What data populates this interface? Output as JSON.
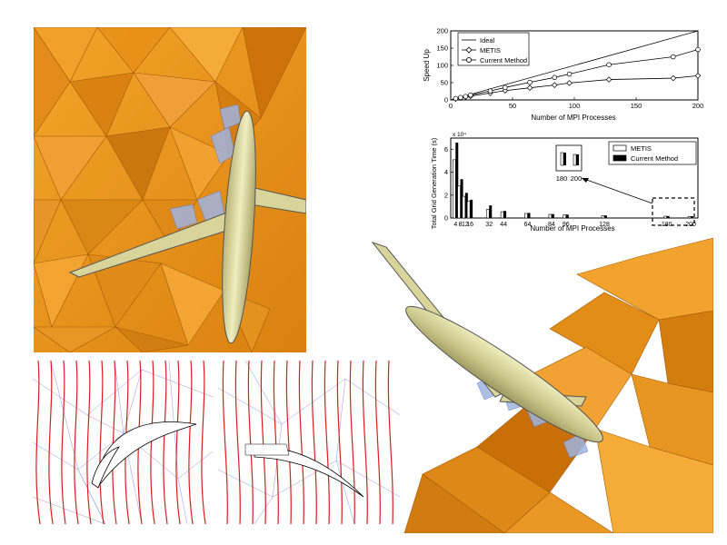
{
  "chart_data": [
    {
      "type": "line",
      "xlabel": "Number of MPI Processes",
      "ylabel": "Speed Up",
      "xlim": [
        0,
        200
      ],
      "ylim": [
        0,
        200
      ],
      "xticks": [
        0,
        50,
        100,
        150,
        200
      ],
      "yticks": [
        0,
        50,
        100,
        150,
        200
      ],
      "legend_position": "top-left",
      "series": [
        {
          "name": "Ideal",
          "marker": "none",
          "x": [
            0,
            200
          ],
          "y": [
            0,
            200
          ]
        },
        {
          "name": "METIS",
          "marker": "diamond",
          "x": [
            4,
            8,
            12,
            16,
            32,
            44,
            64,
            84,
            96,
            128,
            180,
            200
          ],
          "y": [
            3,
            6,
            9,
            11,
            20,
            27,
            35,
            43,
            49,
            59,
            63,
            70
          ]
        },
        {
          "name": "Current Method",
          "marker": "circle",
          "x": [
            4,
            8,
            12,
            16,
            32,
            44,
            64,
            84,
            96,
            128,
            180,
            200
          ],
          "y": [
            4,
            7,
            10,
            14,
            26,
            36,
            51,
            65,
            75,
            102,
            125,
            146
          ]
        }
      ]
    },
    {
      "type": "bar",
      "xlabel": "Number of MPI Processes",
      "ylabel": "Total Grid Generation Time (s)",
      "yexponent": "x 10⁴",
      "ylim": [
        0,
        7
      ],
      "yticks": [
        0,
        2,
        4,
        6
      ],
      "legend_position": "top-right",
      "categories": [
        "4",
        "8",
        "12",
        "16",
        "32",
        "44",
        "64",
        "84",
        "96",
        "128",
        "180",
        "200"
      ],
      "tick_text": [
        "4",
        "8",
        "12",
        "16",
        "32",
        "44",
        "64",
        "84",
        "96",
        "128",
        "180",
        "200"
      ],
      "x": [
        4,
        8,
        12,
        16,
        32,
        44,
        64,
        84,
        96,
        128,
        180,
        200
      ],
      "series": [
        {
          "name": "METIS",
          "fill": "white",
          "values": [
            5.1,
            2.8,
            1.9,
            1.45,
            0.75,
            0.55,
            0.4,
            0.32,
            0.28,
            0.21,
            0.16,
            0.14
          ]
        },
        {
          "name": "Current Method",
          "fill": "black",
          "values": [
            6.6,
            3.4,
            2.2,
            1.6,
            1.1,
            0.62,
            0.44,
            0.34,
            0.3,
            0.22,
            0.17,
            0.15
          ]
        }
      ],
      "inset": {
        "tick_labels": [
          "180",
          "200"
        ]
      }
    }
  ],
  "colors": {
    "mesh_orange": "#f09a1c",
    "mesh_dark": "#c86d0a",
    "aircraft": "#d8d49a",
    "grid_lines": "#3b3bc8",
    "streamlines": "#d81e1e",
    "interface_blue": "#9fb4e0"
  }
}
